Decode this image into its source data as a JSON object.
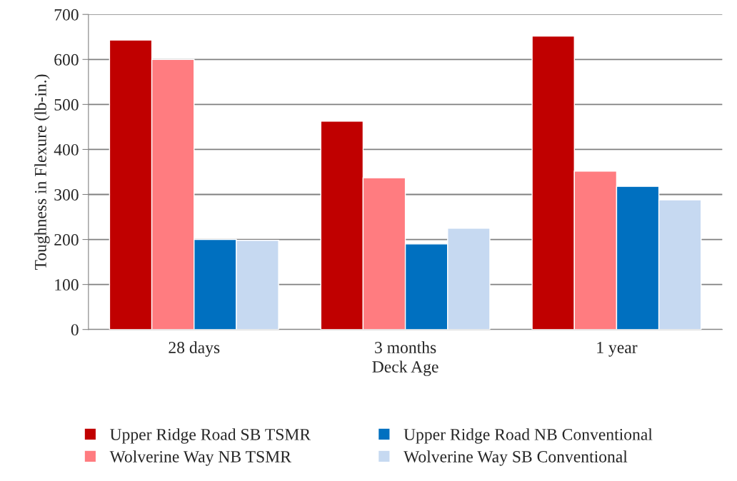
{
  "chart_data": {
    "type": "bar",
    "xlabel": "Deck Age",
    "ylabel": "Toughness in Flexure (lb-in.)",
    "categories": [
      "28 days",
      "3 months",
      "1 year"
    ],
    "series": [
      {
        "name": "Upper Ridge Road SB TSMR",
        "color": "#c00000",
        "values": [
          643,
          463,
          652
        ]
      },
      {
        "name": "Wolverine Way NB TSMR",
        "color": "#ff7c80",
        "values": [
          600,
          337,
          352
        ]
      },
      {
        "name": "Upper Ridge Road NB Conventional",
        "color": "#0070c0",
        "values": [
          200,
          190,
          318
        ]
      },
      {
        "name": "Wolverine Way SB Conventional",
        "color": "#c6d9f1",
        "values": [
          198,
          225,
          288
        ]
      }
    ],
    "ylim": [
      0,
      700
    ],
    "yticks": [
      0,
      100,
      200,
      300,
      400,
      500,
      600,
      700
    ],
    "grid": "y",
    "legend": "bottom"
  }
}
